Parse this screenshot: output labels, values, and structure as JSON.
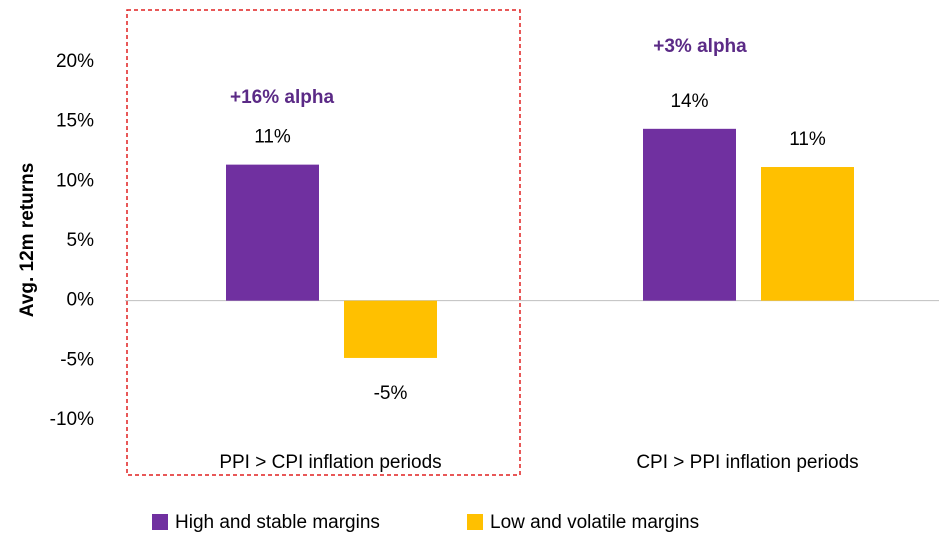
{
  "chart_data": {
    "type": "bar",
    "ylabel": "Avg. 12m returns",
    "categories": [
      "PPI > CPI inflation periods",
      "CPI > PPI inflation periods"
    ],
    "series": [
      {
        "name": "High and stable margins",
        "color": "#7030a0",
        "values": [
          11.4,
          14.4
        ],
        "value_labels": [
          "11%",
          "14%"
        ]
      },
      {
        "name": "Low and volatile margins",
        "color": "#ffc000",
        "values": [
          -4.8,
          11.2
        ],
        "value_labels": [
          "-5%",
          "11%"
        ]
      }
    ],
    "annotations": [
      "+16% alpha",
      "+3% alpha"
    ],
    "ylim": [
      -10,
      20
    ],
    "yticks": [
      {
        "value": -10,
        "label": "-10%"
      },
      {
        "value": -5,
        "label": "-5%"
      },
      {
        "value": 0,
        "label": "0%"
      },
      {
        "value": 5,
        "label": "5%"
      },
      {
        "value": 10,
        "label": "10%"
      },
      {
        "value": 15,
        "label": "15%"
      },
      {
        "value": 20,
        "label": "20%"
      }
    ],
    "legend": "bottom"
  }
}
